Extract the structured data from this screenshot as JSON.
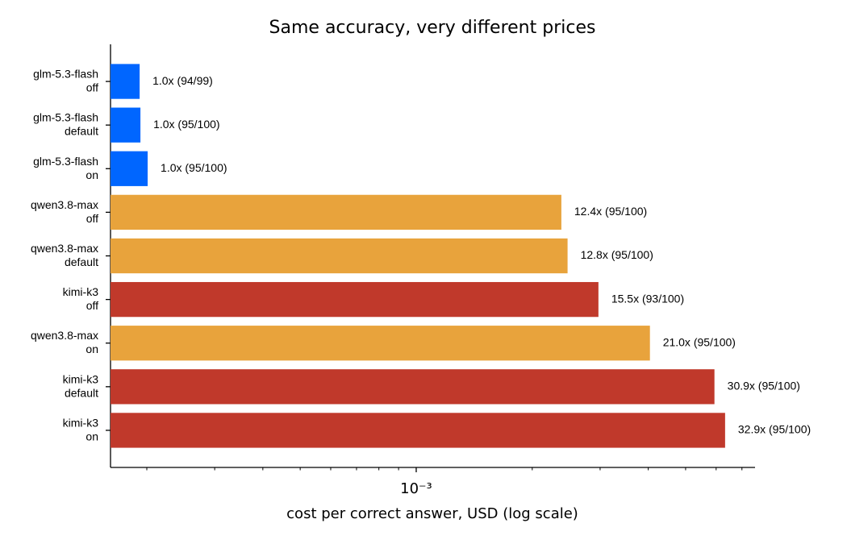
{
  "chart_data": {
    "type": "barh",
    "title": "Same accuracy, very different prices",
    "xlabel": "cost per correct answer, USD (log scale)",
    "categories": [
      "glm-5.3-flash\noff",
      "glm-5.3-flash\ndefault",
      "glm-5.3-flash\non",
      "qwen3.8-max\noff",
      "qwen3.8-max\ndefault",
      "kimi-k3\noff",
      "qwen3.8-max\non",
      "kimi-k3\ndefault",
      "kimi-k3\non"
    ],
    "values": [
      0.0001916,
      0.0001925,
      0.000201,
      0.00238,
      0.00247,
      0.00297,
      0.00404,
      0.00594,
      0.00633
    ],
    "value_labels": [
      "1.0x  (94/99)",
      "1.0x  (95/100)",
      "1.0x  (95/100)",
      "12.4x  (95/100)",
      "12.8x  (95/100)",
      "15.5x  (93/100)",
      "21.0x  (95/100)",
      "30.9x  (95/100)",
      "32.9x  (95/100)"
    ],
    "colors": [
      "#0066ff",
      "#0066ff",
      "#0066ff",
      "#e8a33c",
      "#e8a33c",
      "#c0392b",
      "#e8a33c",
      "#c0392b",
      "#c0392b"
    ],
    "xlim": [
      0.000161,
      0.00757
    ],
    "xscale": "log",
    "xticks": [
      {
        "value": 0.001,
        "label": "10⁻³"
      }
    ],
    "xminorticks": [
      0.0002,
      0.0003,
      0.0004,
      0.0005,
      0.0006,
      0.0007,
      0.0008,
      0.0009,
      0.002,
      0.003,
      0.004,
      0.005,
      0.006,
      0.007
    ],
    "grid": false
  }
}
